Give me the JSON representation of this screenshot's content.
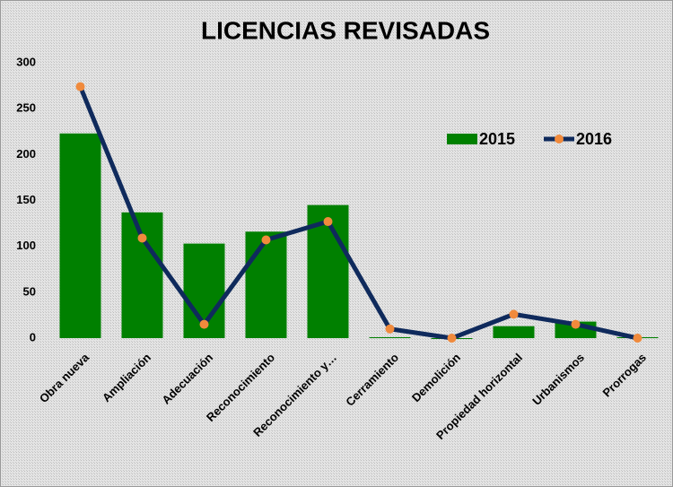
{
  "chart_data": {
    "type": "bar",
    "title": "LICENCIAS REVISADAS",
    "categories": [
      "Obra nueva",
      "Ampliación",
      "Adecuación",
      "Reconocimiento",
      "Reconocimiento y…",
      "Cerramiento",
      "Demolición",
      "Propiedad horizontal",
      "Urbanismos",
      "Prorrogas"
    ],
    "series": [
      {
        "name": "2015",
        "type": "bar",
        "color": "#008000",
        "values": [
          223,
          137,
          103,
          116,
          145,
          1,
          0,
          13,
          18,
          1
        ]
      },
      {
        "name": "2016",
        "type": "line",
        "color": "#0f2a5c",
        "marker_color": "#f08a3c",
        "values": [
          274,
          109,
          15,
          107,
          127,
          10,
          0,
          26,
          15,
          0
        ]
      }
    ],
    "ylim": [
      0,
      300
    ],
    "yticks": [
      0,
      50,
      100,
      150,
      200,
      250,
      300
    ],
    "grid": false,
    "legend": "upper right"
  }
}
